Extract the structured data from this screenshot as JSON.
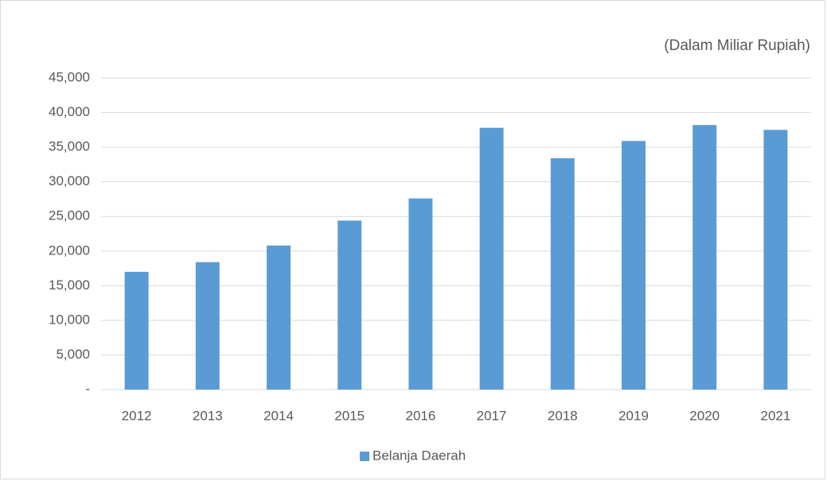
{
  "chart_data": {
    "type": "bar",
    "annotation": "(Dalam Miliar Rupiah)",
    "categories": [
      "2012",
      "2013",
      "2014",
      "2015",
      "2016",
      "2017",
      "2018",
      "2019",
      "2020",
      "2021"
    ],
    "series": [
      {
        "name": "Belanja Daerah",
        "color": "#5b9bd5",
        "values": [
          17000,
          18400,
          20800,
          24400,
          27600,
          37800,
          33400,
          35900,
          38200,
          37500
        ]
      }
    ],
    "ylim": [
      0,
      45000
    ],
    "yticks": [
      {
        "value": 0,
        "label": "-"
      },
      {
        "value": 5000,
        "label": "5,000"
      },
      {
        "value": 10000,
        "label": "10,000"
      },
      {
        "value": 15000,
        "label": "15,000"
      },
      {
        "value": 20000,
        "label": "20,000"
      },
      {
        "value": 25000,
        "label": "25,000"
      },
      {
        "value": 30000,
        "label": "30,000"
      },
      {
        "value": 35000,
        "label": "35,000"
      },
      {
        "value": 40000,
        "label": "40,000"
      },
      {
        "value": 45000,
        "label": "45,000"
      }
    ],
    "grid": true,
    "legend": "bottom"
  }
}
